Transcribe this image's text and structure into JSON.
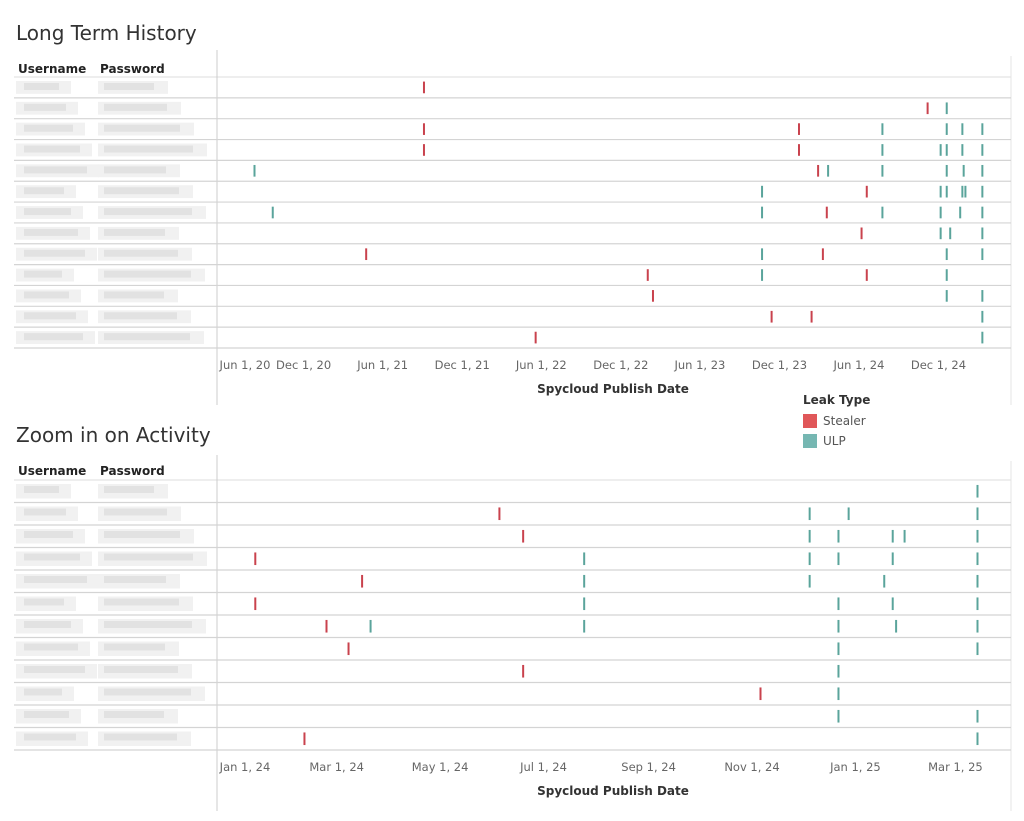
{
  "chart_data": [
    {
      "type": "timeline",
      "title": "Long Term History",
      "columns": [
        "Username",
        "Password"
      ],
      "xlabel": "Spycloud Publish Date",
      "xlim": [
        "2020-05-18",
        "2025-05-10"
      ],
      "ticks": [
        {
          "date": "2020-06-01",
          "label": "Jun 1, 20"
        },
        {
          "date": "2020-12-01",
          "label": "Dec 1, 20"
        },
        {
          "date": "2021-06-01",
          "label": "Jun 1, 21"
        },
        {
          "date": "2021-12-01",
          "label": "Dec 1, 21"
        },
        {
          "date": "2022-06-01",
          "label": "Jun 1, 22"
        },
        {
          "date": "2022-12-01",
          "label": "Dec 1, 22"
        },
        {
          "date": "2023-06-01",
          "label": "Jun 1, 23"
        },
        {
          "date": "2023-12-01",
          "label": "Dec 1, 23"
        },
        {
          "date": "2024-06-01",
          "label": "Jun 1, 24"
        },
        {
          "date": "2024-12-01",
          "label": "Dec 1, 24"
        }
      ],
      "rows": [
        {
          "events": [
            [
              "Stealer",
              "2021-09-04"
            ]
          ]
        },
        {
          "events": [
            [
              "Stealer",
              "2024-11-06"
            ],
            [
              "ULP",
              "2024-12-20"
            ]
          ]
        },
        {
          "events": [
            [
              "Stealer",
              "2021-09-04"
            ],
            [
              "Stealer",
              "2024-01-15"
            ],
            [
              "ULP",
              "2024-07-25"
            ],
            [
              "ULP",
              "2024-12-20"
            ],
            [
              "ULP",
              "2025-01-25"
            ],
            [
              "ULP",
              "2025-03-12"
            ]
          ]
        },
        {
          "events": [
            [
              "Stealer",
              "2021-09-04"
            ],
            [
              "Stealer",
              "2024-01-15"
            ],
            [
              "ULP",
              "2024-07-25"
            ],
            [
              "ULP",
              "2024-12-06"
            ],
            [
              "ULP",
              "2024-12-20"
            ],
            [
              "ULP",
              "2025-01-25"
            ],
            [
              "ULP",
              "2025-03-12"
            ]
          ]
        },
        {
          "events": [
            [
              "ULP",
              "2020-08-10"
            ],
            [
              "Stealer",
              "2024-02-28"
            ],
            [
              "ULP",
              "2024-03-22"
            ],
            [
              "ULP",
              "2024-07-25"
            ],
            [
              "ULP",
              "2024-12-20"
            ],
            [
              "ULP",
              "2025-01-28"
            ],
            [
              "ULP",
              "2025-03-12"
            ]
          ]
        },
        {
          "events": [
            [
              "ULP",
              "2023-10-22"
            ],
            [
              "Stealer",
              "2024-06-19"
            ],
            [
              "ULP",
              "2024-12-06"
            ],
            [
              "ULP",
              "2024-12-20"
            ],
            [
              "ULP",
              "2025-01-25"
            ],
            [
              "ULP",
              "2025-02-01"
            ],
            [
              "ULP",
              "2025-03-12"
            ]
          ]
        },
        {
          "events": [
            [
              "ULP",
              "2020-09-21"
            ],
            [
              "ULP",
              "2023-10-22"
            ],
            [
              "Stealer",
              "2024-03-19"
            ],
            [
              "ULP",
              "2024-07-25"
            ],
            [
              "ULP",
              "2024-12-06"
            ],
            [
              "ULP",
              "2025-01-20"
            ],
            [
              "ULP",
              "2025-03-12"
            ]
          ]
        },
        {
          "events": [
            [
              "Stealer",
              "2024-06-07"
            ],
            [
              "ULP",
              "2024-12-06"
            ],
            [
              "ULP",
              "2024-12-28"
            ],
            [
              "ULP",
              "2025-03-12"
            ]
          ]
        },
        {
          "events": [
            [
              "Stealer",
              "2021-04-24"
            ],
            [
              "ULP",
              "2023-10-22"
            ],
            [
              "Stealer",
              "2024-03-10"
            ],
            [
              "ULP",
              "2024-12-20"
            ],
            [
              "ULP",
              "2025-03-12"
            ]
          ]
        },
        {
          "events": [
            [
              "Stealer",
              "2023-02-01"
            ],
            [
              "ULP",
              "2023-10-22"
            ],
            [
              "Stealer",
              "2024-06-19"
            ],
            [
              "ULP",
              "2024-12-20"
            ]
          ]
        },
        {
          "events": [
            [
              "Stealer",
              "2023-02-13"
            ],
            [
              "ULP",
              "2024-12-20"
            ],
            [
              "ULP",
              "2025-03-12"
            ]
          ]
        },
        {
          "events": [
            [
              "Stealer",
              "2023-11-13"
            ],
            [
              "Stealer",
              "2024-02-13"
            ],
            [
              "ULP",
              "2025-03-12"
            ]
          ]
        },
        {
          "events": [
            [
              "Stealer",
              "2022-05-19"
            ],
            [
              "ULP",
              "2025-03-12"
            ]
          ]
        }
      ]
    },
    {
      "type": "timeline",
      "title": "Zoom in on Activity",
      "columns": [
        "Username",
        "Password"
      ],
      "xlabel": "Spycloud Publish Date",
      "xlim": [
        "2023-12-22",
        "2025-04-01"
      ],
      "ticks": [
        {
          "date": "2024-01-01",
          "label": "Jan 1, 24"
        },
        {
          "date": "2024-03-01",
          "label": "Mar 1, 24"
        },
        {
          "date": "2024-05-01",
          "label": "May 1, 24"
        },
        {
          "date": "2024-07-01",
          "label": "Jul 1, 24"
        },
        {
          "date": "2024-09-01",
          "label": "Sep 1, 24"
        },
        {
          "date": "2024-11-01",
          "label": "Nov 1, 24"
        },
        {
          "date": "2025-01-01",
          "label": "Jan 1, 25"
        },
        {
          "date": "2025-03-01",
          "label": "Mar 1, 25"
        }
      ],
      "rows": [
        {
          "events": [
            [
              "ULP",
              "2025-03-14"
            ]
          ]
        },
        {
          "events": [
            [
              "Stealer",
              "2024-06-05"
            ],
            [
              "ULP",
              "2024-12-05"
            ],
            [
              "ULP",
              "2024-12-28"
            ],
            [
              "ULP",
              "2025-03-14"
            ]
          ]
        },
        {
          "events": [
            [
              "Stealer",
              "2024-06-19"
            ],
            [
              "ULP",
              "2024-12-05"
            ],
            [
              "ULP",
              "2024-12-22"
            ],
            [
              "ULP",
              "2025-01-23"
            ],
            [
              "ULP",
              "2025-01-30"
            ],
            [
              "ULP",
              "2025-03-14"
            ]
          ]
        },
        {
          "events": [
            [
              "Stealer",
              "2024-01-13"
            ],
            [
              "ULP",
              "2024-07-25"
            ],
            [
              "ULP",
              "2024-12-05"
            ],
            [
              "ULP",
              "2024-12-22"
            ],
            [
              "ULP",
              "2025-01-23"
            ],
            [
              "ULP",
              "2025-03-14"
            ]
          ]
        },
        {
          "events": [
            [
              "Stealer",
              "2024-03-16"
            ],
            [
              "ULP",
              "2024-07-25"
            ],
            [
              "ULP",
              "2024-12-05"
            ],
            [
              "ULP",
              "2025-01-18"
            ],
            [
              "ULP",
              "2025-03-14"
            ]
          ]
        },
        {
          "events": [
            [
              "Stealer",
              "2024-01-13"
            ],
            [
              "ULP",
              "2024-07-25"
            ],
            [
              "ULP",
              "2024-12-22"
            ],
            [
              "ULP",
              "2025-01-23"
            ],
            [
              "ULP",
              "2025-03-14"
            ]
          ]
        },
        {
          "events": [
            [
              "Stealer",
              "2024-02-24"
            ],
            [
              "ULP",
              "2024-03-21"
            ],
            [
              "ULP",
              "2024-07-25"
            ],
            [
              "ULP",
              "2024-12-22"
            ],
            [
              "ULP",
              "2025-01-25"
            ],
            [
              "ULP",
              "2025-03-14"
            ]
          ]
        },
        {
          "events": [
            [
              "Stealer",
              "2024-03-08"
            ],
            [
              "ULP",
              "2024-12-22"
            ],
            [
              "ULP",
              "2025-03-14"
            ]
          ]
        },
        {
          "events": [
            [
              "Stealer",
              "2024-06-19"
            ],
            [
              "ULP",
              "2024-12-22"
            ]
          ]
        },
        {
          "events": [
            [
              "Stealer",
              "2024-11-06"
            ],
            [
              "ULP",
              "2024-12-22"
            ]
          ]
        },
        {
          "events": [
            [
              "ULP",
              "2024-12-22"
            ],
            [
              "ULP",
              "2025-03-14"
            ]
          ]
        },
        {
          "events": [
            [
              "Stealer",
              "2024-02-11"
            ],
            [
              "ULP",
              "2025-03-14"
            ]
          ]
        }
      ]
    }
  ],
  "legend": {
    "title": "Leak Type",
    "items": [
      {
        "label": "Stealer",
        "color": "#e05759",
        "mark_color": "#c9424d"
      },
      {
        "label": "ULP",
        "color": "#76b7b2",
        "mark_color": "#5aa49b"
      }
    ],
    "placement": "between charts, right"
  },
  "notes_visible": {
    "row_labels": "blurred"
  }
}
